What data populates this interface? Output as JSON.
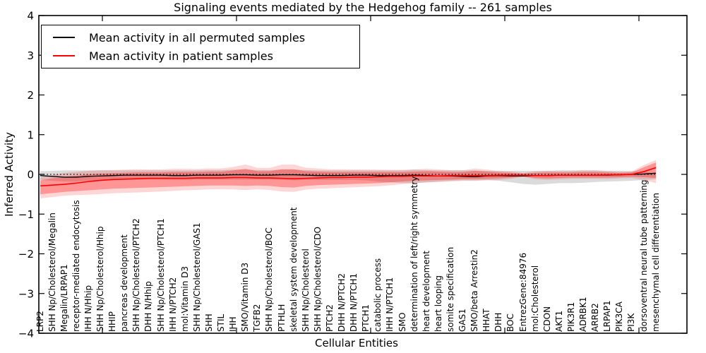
{
  "chart_data": {
    "type": "line",
    "title": "Signaling events mediated by the Hedgehog family -- 261 samples",
    "xlabel": "Cellular Entities",
    "ylabel": "Inferred Activity",
    "ylim": [
      -4,
      4
    ],
    "yticks": [
      4,
      3,
      2,
      1,
      0,
      -1,
      -2,
      -3,
      -4
    ],
    "grid": false,
    "legend_position": "upper left",
    "zero_line_style": "dotted",
    "axis_color": "#000000",
    "background_color": "#ffffff",
    "categories": [
      "LRP2",
      "SHH Np/Cholesterol/Megalin",
      "Megalin/LRPAP1",
      "receptor-mediated endocytosis",
      "IHH N/Hhip",
      "SHH Np/Cholesterol/Hhip",
      "HHIP",
      "pancreas development",
      "SHH Np/Cholesterol/PTCH2",
      "DHH N/Hhip",
      "SHH Np/Cholesterol/PTCH1",
      "IHH N/PTCH2",
      "mol:Vitamin D3",
      "SHH Np/Cholesterol/GAS1",
      "SHH",
      "STIL",
      "IHH",
      "SMO/Vitamin D3",
      "TGFB2",
      "SHH Np/Cholesterol/BOC",
      "PTHLH",
      "skeletal system development",
      "SHH Np/Cholesterol",
      "SHH Np/Cholesterol/CDO",
      "PTCH2",
      "DHH N/PTCH2",
      "DHH N/PTCH1",
      "PTCH1",
      "catabolic process",
      "IHH N/PTCH1",
      "SMO",
      "determination of left/right symmetry",
      "heart development",
      "heart looping",
      "somite specification",
      "GAS1",
      "SMO/beta Arrestin2",
      "HHAT",
      "DHH",
      "BOC",
      "EntrezGene:84976",
      "mol:Cholesterol",
      "CDON",
      "AKT1",
      "PIK3R1",
      "ADRBK1",
      "ARRB2",
      "LRPAP1",
      "PIK3CA",
      "PI3K",
      "dorsoventral neural tube patterning",
      "mesenchymal cell differentiation"
    ],
    "series": [
      {
        "name": "Mean activity in all permuted samples",
        "color": "#000000",
        "band_color": "rgba(125,125,125,0.28)",
        "values": [
          -0.03,
          -0.05,
          -0.07,
          -0.07,
          -0.05,
          -0.04,
          -0.03,
          -0.02,
          -0.02,
          -0.02,
          -0.02,
          -0.03,
          -0.03,
          -0.02,
          -0.02,
          -0.02,
          -0.01,
          -0.01,
          -0.02,
          -0.02,
          -0.01,
          -0.01,
          -0.02,
          -0.03,
          -0.03,
          -0.03,
          -0.02,
          -0.02,
          -0.03,
          -0.03,
          -0.03,
          -0.02,
          -0.03,
          -0.04,
          -0.04,
          -0.05,
          -0.06,
          -0.04,
          -0.03,
          -0.04,
          -0.04,
          -0.03,
          -0.03,
          -0.02,
          -0.02,
          -0.02,
          -0.02,
          -0.02,
          -0.01,
          0.0,
          0.01,
          0.03
        ],
        "band_upper": [
          0.08,
          0.09,
          0.1,
          0.1,
          0.1,
          0.1,
          0.1,
          0.1,
          0.1,
          0.1,
          0.1,
          0.1,
          0.1,
          0.1,
          0.11,
          0.11,
          0.12,
          0.12,
          0.11,
          0.11,
          0.12,
          0.12,
          0.11,
          0.1,
          0.1,
          0.1,
          0.1,
          0.1,
          0.1,
          0.1,
          0.1,
          0.12,
          0.11,
          0.1,
          0.1,
          0.1,
          0.1,
          0.09,
          0.09,
          0.09,
          0.09,
          0.09,
          0.09,
          0.1,
          0.1,
          0.1,
          0.1,
          0.09,
          0.09,
          0.08,
          0.06,
          0.04
        ],
        "band_lower": [
          -0.14,
          -0.16,
          -0.18,
          -0.18,
          -0.16,
          -0.15,
          -0.14,
          -0.14,
          -0.13,
          -0.13,
          -0.13,
          -0.14,
          -0.14,
          -0.13,
          -0.13,
          -0.13,
          -0.13,
          -0.13,
          -0.13,
          -0.13,
          -0.14,
          -0.15,
          -0.14,
          -0.14,
          -0.14,
          -0.14,
          -0.14,
          -0.15,
          -0.18,
          -0.2,
          -0.22,
          -0.22,
          -0.2,
          -0.18,
          -0.16,
          -0.15,
          -0.15,
          -0.14,
          -0.16,
          -0.2,
          -0.24,
          -0.26,
          -0.24,
          -0.22,
          -0.22,
          -0.21,
          -0.19,
          -0.18,
          -0.17,
          -0.16,
          -0.14,
          -0.12
        ]
      },
      {
        "name": "Mean activity in patient samples",
        "color": "#ff0000",
        "band_color": "rgba(255,0,0,0.30)",
        "band_outer_color": "rgba(255,0,0,0.16)",
        "band_outer_scale": 1.5,
        "values": [
          -0.29,
          -0.27,
          -0.25,
          -0.22,
          -0.18,
          -0.15,
          -0.13,
          -0.12,
          -0.11,
          -0.1,
          -0.1,
          -0.1,
          -0.1,
          -0.09,
          -0.09,
          -0.09,
          -0.08,
          -0.08,
          -0.09,
          -0.09,
          -0.1,
          -0.11,
          -0.1,
          -0.09,
          -0.08,
          -0.08,
          -0.07,
          -0.07,
          -0.06,
          -0.05,
          -0.05,
          -0.04,
          -0.04,
          -0.04,
          -0.03,
          -0.03,
          -0.03,
          -0.03,
          -0.02,
          -0.02,
          -0.02,
          -0.03,
          -0.03,
          -0.02,
          -0.02,
          -0.02,
          -0.02,
          -0.01,
          -0.01,
          0.0,
          0.07,
          0.17
        ],
        "band_upper": [
          -0.15,
          -0.1,
          -0.06,
          -0.03,
          0.0,
          0.02,
          0.03,
          0.04,
          0.05,
          0.05,
          0.05,
          0.06,
          0.06,
          0.06,
          0.07,
          0.07,
          0.1,
          0.14,
          0.08,
          0.08,
          0.13,
          0.13,
          0.08,
          0.07,
          0.06,
          0.06,
          0.06,
          0.06,
          0.06,
          0.06,
          0.06,
          0.07,
          0.08,
          0.07,
          0.06,
          0.06,
          0.09,
          0.07,
          0.05,
          0.04,
          0.02,
          0.04,
          0.05,
          0.05,
          0.05,
          0.06,
          0.06,
          0.05,
          0.04,
          0.05,
          0.18,
          0.3
        ],
        "band_lower": [
          -0.5,
          -0.47,
          -0.44,
          -0.42,
          -0.4,
          -0.38,
          -0.36,
          -0.35,
          -0.34,
          -0.33,
          -0.32,
          -0.31,
          -0.3,
          -0.29,
          -0.28,
          -0.28,
          -0.28,
          -0.29,
          -0.28,
          -0.29,
          -0.32,
          -0.33,
          -0.29,
          -0.27,
          -0.26,
          -0.25,
          -0.24,
          -0.23,
          -0.22,
          -0.2,
          -0.18,
          -0.16,
          -0.15,
          -0.14,
          -0.13,
          -0.12,
          -0.12,
          -0.11,
          -0.1,
          -0.08,
          -0.05,
          -0.09,
          -0.1,
          -0.09,
          -0.08,
          -0.08,
          -0.08,
          -0.08,
          -0.07,
          -0.06,
          -0.07,
          -0.09
        ]
      }
    ]
  }
}
